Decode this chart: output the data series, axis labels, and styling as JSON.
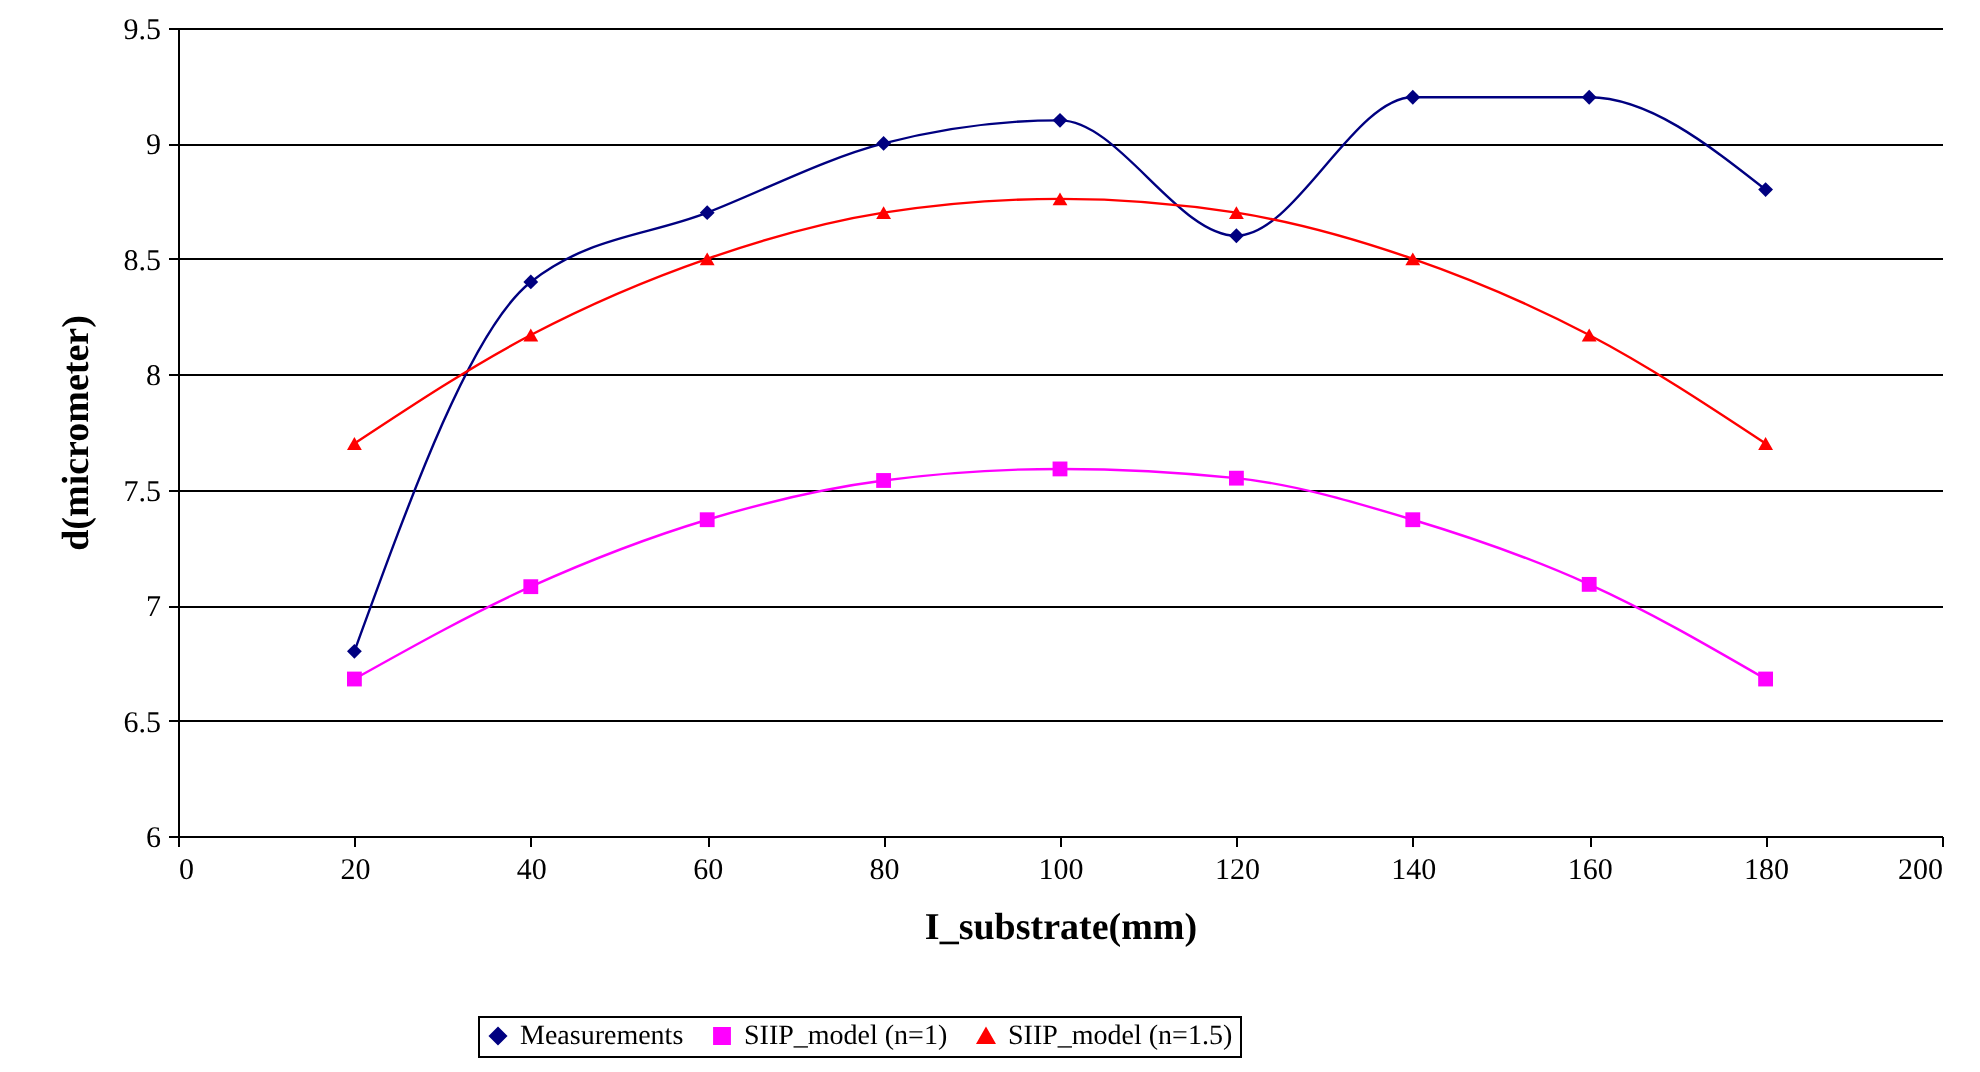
{
  "chart_data": {
    "type": "line",
    "xlabel": "I_substrate(mm)",
    "ylabel": "d(micrometer)",
    "x": [
      20,
      40,
      60,
      80,
      100,
      120,
      140,
      160,
      180
    ],
    "series": [
      {
        "name": "Measurements",
        "color": "#000080",
        "marker": "diamond",
        "values": [
          6.8,
          8.4,
          8.7,
          9.0,
          9.1,
          8.6,
          9.2,
          9.2,
          8.8
        ]
      },
      {
        "name": "SIIP_model (n=1)",
        "color": "#ff00ff",
        "marker": "square",
        "values": [
          6.68,
          7.08,
          7.37,
          7.54,
          7.59,
          7.55,
          7.37,
          7.09,
          6.68
        ]
      },
      {
        "name": "SIIP_model (n=1.5)",
        "color": "#ff0000",
        "marker": "triangle",
        "values": [
          7.7,
          8.17,
          8.5,
          8.7,
          8.76,
          8.7,
          8.5,
          8.17,
          7.7
        ]
      }
    ],
    "xlim": [
      0,
      200
    ],
    "xticks": [
      0,
      20,
      40,
      60,
      80,
      100,
      120,
      140,
      160,
      180,
      200
    ],
    "ylim": [
      6,
      9.5
    ],
    "yticks": [
      6,
      6.5,
      7,
      7.5,
      8,
      8.5,
      9,
      9.5
    ],
    "grid": "y",
    "legend": "bottom"
  }
}
